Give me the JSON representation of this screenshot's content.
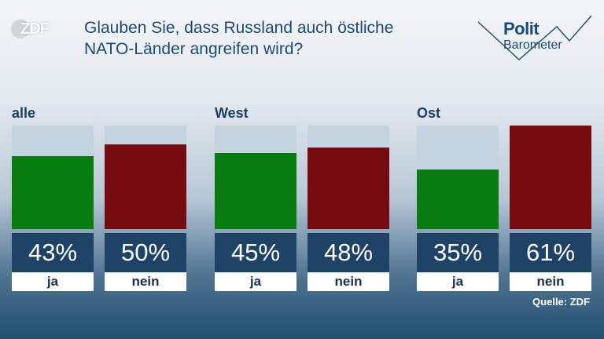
{
  "brand": {
    "zdf_text": "ZDF",
    "polit_line1": "Polit",
    "polit_line2": "Barometer"
  },
  "title_lines": [
    "Glauben Sie, dass Russland auch östliche",
    "NATO-Länder angreifen wird?"
  ],
  "source": "Quelle: ZDF",
  "colors": {
    "ja": "#087c10",
    "nein": "#760c10",
    "empty": "#c3d4e0",
    "label_bg": "#1f4367"
  },
  "chart_data": {
    "type": "bar",
    "title": "Glauben Sie, dass Russland auch östliche NATO-Länder angreifen wird?",
    "categories": [
      "ja",
      "nein"
    ],
    "ylim": [
      0,
      61
    ],
    "unit": "%",
    "groups": [
      {
        "name": "alle",
        "values": [
          43,
          50
        ],
        "labels": [
          "43%",
          "50%"
        ]
      },
      {
        "name": "West",
        "values": [
          45,
          48
        ],
        "labels": [
          "45%",
          "48%"
        ]
      },
      {
        "name": "Ost",
        "values": [
          35,
          61
        ],
        "labels": [
          "35%",
          "61%"
        ]
      }
    ],
    "grid": false,
    "legend": "none"
  }
}
